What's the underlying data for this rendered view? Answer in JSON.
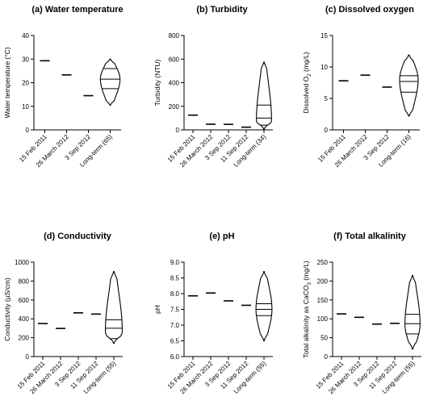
{
  "chart_data": [
    {
      "type": "violin",
      "title": "(a) Water temperature",
      "ylabel": "Water temperature (°C)",
      "ylim": [
        0,
        40
      ],
      "yticks": [
        0,
        10,
        20,
        30,
        40
      ],
      "categories": [
        "15 Feb 2011",
        "26 March 2012",
        "3 Sep 2012",
        "Long-term (65)"
      ],
      "values": [
        29.3,
        23.3,
        14.5,
        null
      ],
      "violin": {
        "index": 3,
        "min": 10.5,
        "max": 30,
        "q1": 17.5,
        "median": 21.5,
        "q3": 26,
        "mode": 21.5,
        "halfwidth": 0.9
      }
    },
    {
      "type": "violin",
      "title": "(b) Turbidity",
      "ylabel": "Turbidity (NTU)",
      "ylim": [
        0,
        800
      ],
      "yticks": [
        0,
        200,
        400,
        600,
        800
      ],
      "categories": [
        "15 Feb 2011",
        "26 March 2012",
        "3 Sep 2012",
        "11 Sep 2012",
        "Long-term (34)"
      ],
      "values": [
        125,
        48,
        47,
        23,
        null
      ],
      "violin": {
        "index": 4,
        "min": 5,
        "max": 575,
        "q1": 40,
        "median": 100,
        "q3": 210,
        "mode": 80,
        "halfwidth": 0.85
      }
    },
    {
      "type": "violin",
      "title": "(c) Dissolved oxygen",
      "ylabel_main": "Dissolved O",
      "ylabel_sub": "2",
      "ylabel_unit": " (mg/L)",
      "ylim": [
        0,
        15
      ],
      "yticks": [
        0,
        5,
        10,
        15
      ],
      "categories": [
        "15 Feb 2011",
        "26 March 2012",
        "3 Sep 2012",
        "Long-term (16)"
      ],
      "values": [
        7.8,
        8.7,
        6.8,
        null
      ],
      "violin": {
        "index": 3,
        "min": 2.2,
        "max": 11.9,
        "q1": 6.0,
        "median": 7.7,
        "q3": 8.6,
        "mode": 8.0,
        "halfwidth": 0.85
      }
    },
    {
      "type": "violin",
      "title": "(d) Conductivity",
      "ylabel": "Conductivity (µS/cm)",
      "ylim": [
        0,
        1000
      ],
      "yticks": [
        0,
        200,
        400,
        600,
        800,
        1000
      ],
      "categories": [
        "15 Feb 2011",
        "26 March 2012",
        "3 Sep 2012",
        "11 Sep 2012",
        "Long-term (55)"
      ],
      "values": [
        350,
        298,
        463,
        450,
        null
      ],
      "violin": {
        "index": 4,
        "min": 140,
        "max": 900,
        "q1": 190,
        "median": 300,
        "q3": 390,
        "mode": 270,
        "halfwidth": 0.95
      }
    },
    {
      "type": "violin",
      "title": "(e) pH",
      "ylabel": "pH",
      "ylim": [
        6.0,
        9.0
      ],
      "yticks": [
        "6.0",
        "6.5",
        "7.0",
        "7.5",
        "8.0",
        "8.5",
        "9.0"
      ],
      "categories": [
        "15 Feb 2011",
        "26 March 2012",
        "3 Sep 2012",
        "11 Sep 2012",
        "Long-term (55)"
      ],
      "values": [
        7.93,
        8.02,
        7.77,
        7.63,
        null
      ],
      "violin": {
        "index": 4,
        "min": 6.5,
        "max": 8.7,
        "q1": 7.3,
        "median": 7.5,
        "q3": 7.68,
        "mode": 7.5,
        "halfwidth": 0.9
      }
    },
    {
      "type": "violin",
      "title": "(f) Total alkalinity",
      "ylabel_main": "Total alkalinity as CaCO",
      "ylabel_sub": "3",
      "ylabel_unit": " (mg/L)",
      "ylim": [
        0,
        250
      ],
      "yticks": [
        0,
        50,
        100,
        150,
        200,
        250
      ],
      "categories": [
        "15 Feb 2011",
        "26 March 2012",
        "3 Sep 2012",
        "11 Sep 2012",
        "Long-term (55)"
      ],
      "values": [
        113,
        104,
        86,
        88,
        null
      ],
      "violin": {
        "index": 4,
        "min": 20,
        "max": 215,
        "q1": 60,
        "median": 87,
        "q3": 112,
        "mode": 85,
        "halfwidth": 0.85
      }
    }
  ]
}
